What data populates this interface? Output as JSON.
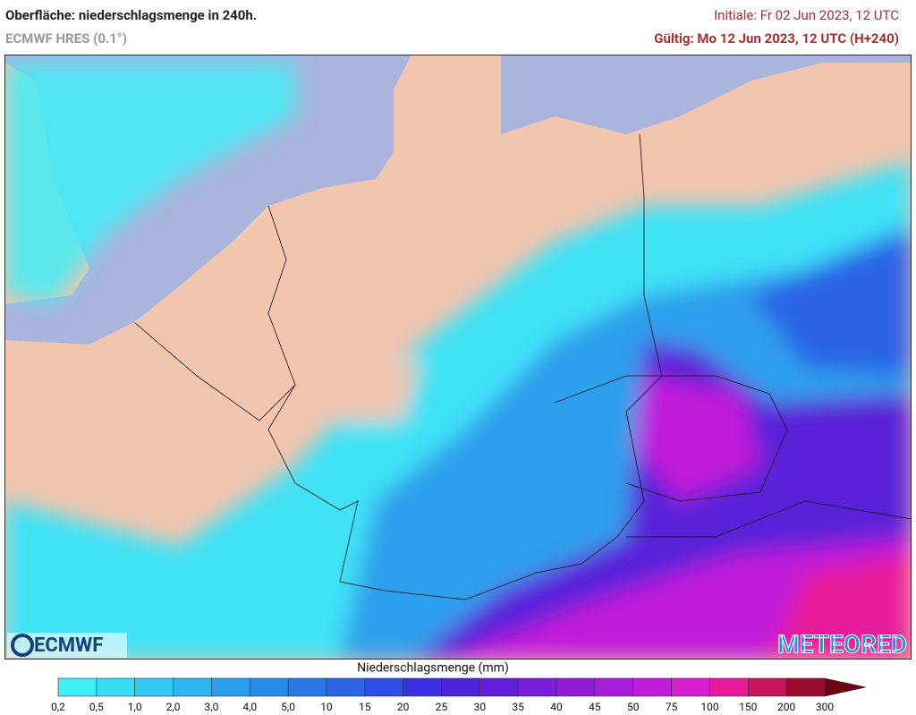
{
  "header": {
    "title": "Oberfläche: niederschlagsmenge in 240h.",
    "model": "ECMWF HRES (0.1°)",
    "initial": "Initiale: Fr 02 Jun 2023, 12 UTC",
    "valid": "Gültig: Mo 12 Jun 2023, 12 UTC (H+240)"
  },
  "logos": {
    "left": "ECMWF",
    "right": "METEORED"
  },
  "colorbar": {
    "title": "Niederschlagsmenge (mm)",
    "labels": [
      "0,2",
      "0,5",
      "1,0",
      "2,0",
      "3,0",
      "4,0",
      "5,0",
      "10",
      "15",
      "20",
      "25",
      "30",
      "35",
      "40",
      "45",
      "50",
      "75",
      "100",
      "150",
      "200",
      "300"
    ],
    "colors": [
      "#40eef7",
      "#38dcf5",
      "#33c8f2",
      "#2eb4ef",
      "#2aa0ec",
      "#2a8cea",
      "#2a78e8",
      "#2b64e6",
      "#2f4fe4",
      "#3a2fe0",
      "#4e22d8",
      "#6420d8",
      "#7a1fd9",
      "#901ed9",
      "#a81ddb",
      "#c01cda",
      "#d81ccf",
      "#e81a9a",
      "#c8145a",
      "#9a0c30",
      "#6a0410"
    ]
  }
}
